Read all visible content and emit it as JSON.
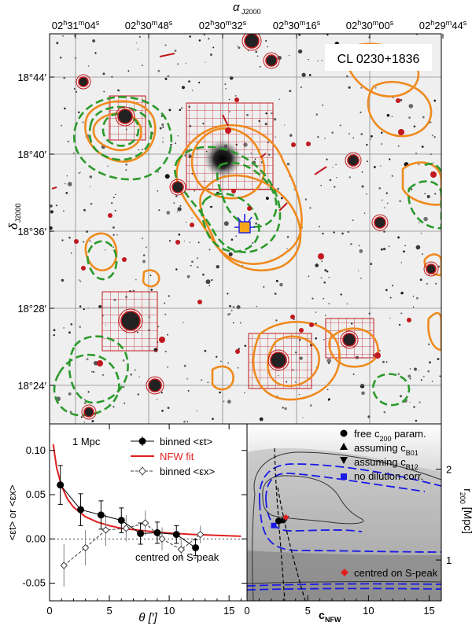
{
  "chart_data": [
    {
      "type": "image-map",
      "title": "CL 0230+1836",
      "x_axis_label": "α J2000",
      "y_axis_label": "δ J2000",
      "ra_ticks": [
        {
          "h": "02",
          "m": "31",
          "s": "04"
        },
        {
          "h": "02",
          "m": "30",
          "s": "48"
        },
        {
          "h": "02",
          "m": "30",
          "s": "32"
        },
        {
          "h": "02",
          "m": "30",
          "s": "16"
        },
        {
          "h": "02",
          "m": "30",
          "s": "00"
        },
        {
          "h": "02",
          "m": "29",
          "s": "44"
        }
      ],
      "dec_ticks": [
        "18°44′",
        "18°40′",
        "18°36′",
        "18°28′",
        "18°24′"
      ],
      "layers": [
        "orange solid contours",
        "green dashed contours",
        "red grid regions",
        "red circled sources",
        "yellow square marker"
      ]
    },
    {
      "type": "scatter",
      "xlabel": "θ [′]",
      "ylabel": "<εt> or <εx>",
      "xlim": [
        0,
        16.5
      ],
      "ylim": [
        -0.07,
        0.13
      ],
      "x_ticks": [
        0,
        5,
        10,
        15
      ],
      "y_ticks": [
        -0.05,
        0.0,
        0.05,
        0.1
      ],
      "y_tick_labels": [
        "-0.05",
        "0.00",
        "0.05",
        "0.10"
      ],
      "annotation_top": "1 Mpc",
      "annotation_bottom": "centred on S-peak",
      "series": [
        {
          "name": "binned <εt>",
          "marker": "filled-circle",
          "color": "#000000",
          "x": [
            0.9,
            2.6,
            4.3,
            6.0,
            7.6,
            9.0,
            10.6,
            12.2
          ],
          "y": [
            0.061,
            0.033,
            0.027,
            0.021,
            0.006,
            0.007,
            0.005,
            -0.01
          ],
          "err": [
            0.022,
            0.018,
            0.016,
            0.014,
            0.012,
            0.012,
            0.01,
            0.009
          ]
        },
        {
          "name": "NFW fit",
          "marker": "line",
          "color": "#e02020",
          "x": [
            0.3,
            0.6,
            1.0,
            1.5,
            2.0,
            3.0,
            4.0,
            5.0,
            6.0,
            8.0,
            10.0,
            12.0,
            14.0,
            16.0
          ],
          "y": [
            0.107,
            0.08,
            0.06,
            0.045,
            0.036,
            0.025,
            0.019,
            0.015,
            0.012,
            0.009,
            0.0065,
            0.005,
            0.004,
            0.003
          ]
        },
        {
          "name": "binned <εx>",
          "marker": "open-diamond",
          "color": "#404040",
          "x": [
            1.2,
            3.0,
            4.7,
            6.4,
            8.0,
            9.4,
            11.0,
            12.6
          ],
          "y": [
            -0.03,
            -0.01,
            0.01,
            0.012,
            0.018,
            0.0,
            -0.012,
            0.005
          ],
          "err": [
            0.024,
            0.02,
            0.018,
            0.015,
            0.014,
            0.013,
            0.011,
            0.01
          ]
        }
      ]
    },
    {
      "type": "contour",
      "xlabel": "cNFW",
      "ylabel": "r200 [Mpc]",
      "xlim": [
        0,
        16
      ],
      "ylim": [
        0.55,
        2.5
      ],
      "x_ticks": [
        0,
        5,
        10,
        15
      ],
      "y_ticks": [
        1,
        2
      ],
      "points": [
        {
          "name": "free c200 param.",
          "marker": "filled-circle",
          "color": "#000000",
          "x": 2.6,
          "y": 1.43
        },
        {
          "name": "assuming cB01",
          "marker": "triangle-up",
          "color": "#000000",
          "x": 2.9,
          "y": 1.44
        },
        {
          "name": "assuming cB12",
          "marker": "triangle-down",
          "color": "#000000",
          "x": 3.2,
          "y": 1.45
        },
        {
          "name": "no dilution corr.",
          "marker": "square",
          "color": "#1a1ae6",
          "x": 2.2,
          "y": 1.38
        },
        {
          "name": "centred on S-peak",
          "marker": "diamond",
          "color": "#e02020",
          "x": 3.2,
          "y": 1.47
        }
      ]
    }
  ]
}
